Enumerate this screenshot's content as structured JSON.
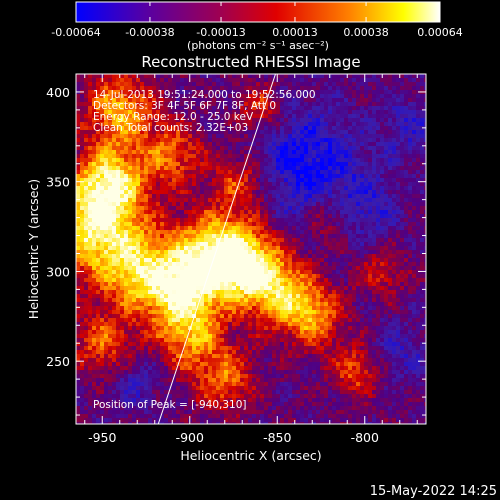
{
  "chart_data": {
    "type": "heatmap",
    "title": "Reconstructed RHESSI Image",
    "xlabel": "Heliocentric X (arcsec)",
    "ylabel": "Heliocentric Y (arcsec)",
    "xlim": [
      -965,
      -765
    ],
    "ylim": [
      215,
      410
    ],
    "x_ticks": [
      -950,
      -900,
      -850,
      -800
    ],
    "y_ticks": [
      250,
      300,
      350,
      400
    ],
    "x_tick_labels": [
      "-950",
      "-900",
      "-850",
      "-800"
    ],
    "y_tick_labels": [
      "250",
      "300",
      "350",
      "400"
    ],
    "colorbar": {
      "range": [
        -0.00064,
        0.00064
      ],
      "ticks": [
        -0.00064,
        -0.00038,
        -0.00013,
        0.00013,
        0.00038,
        0.00064
      ],
      "tick_labels": [
        "-0.00064",
        "-0.00038",
        "-0.00013",
        "0.00013",
        "0.00038",
        "0.00064"
      ],
      "units": "(photons cm⁻² s⁻¹ asec⁻²)"
    },
    "annotations": [
      "14-Jul-2013 19:51:24.000 to 19:52:56.000",
      "Detectors: 3F 4F 5F 6F 7F 8F, Att 0",
      "Energy Range: 12.0 - 25.0 keV",
      "Clean    Total counts: 2.32E+03"
    ],
    "peak_label": "Position of Peak = [-940,310]",
    "peak": [
      -940,
      310
    ],
    "limb_line": [
      [
        -918,
        215
      ],
      [
        -851,
        410
      ]
    ],
    "grid": false,
    "colormap": [
      "#0000ff",
      "#4b0082",
      "#800080",
      "#cc0000",
      "#ff8c00",
      "#ffff00",
      "#ffffff"
    ],
    "hot_regions": [
      {
        "x": -955,
        "y": 325,
        "s": 18,
        "a": 1.0
      },
      {
        "x": -945,
        "y": 350,
        "s": 14,
        "a": 0.9
      },
      {
        "x": -930,
        "y": 300,
        "s": 16,
        "a": 0.8
      },
      {
        "x": -905,
        "y": 290,
        "s": 14,
        "a": 0.8
      },
      {
        "x": -888,
        "y": 310,
        "s": 16,
        "a": 0.9
      },
      {
        "x": -870,
        "y": 305,
        "s": 14,
        "a": 0.95
      },
      {
        "x": -850,
        "y": 290,
        "s": 14,
        "a": 0.8
      },
      {
        "x": -830,
        "y": 275,
        "s": 12,
        "a": 0.7
      },
      {
        "x": -900,
        "y": 265,
        "s": 14,
        "a": 0.7
      },
      {
        "x": -880,
        "y": 240,
        "s": 12,
        "a": 0.6
      },
      {
        "x": -940,
        "y": 390,
        "s": 14,
        "a": 0.8
      },
      {
        "x": -910,
        "y": 365,
        "s": 12,
        "a": 0.6
      },
      {
        "x": -870,
        "y": 350,
        "s": 12,
        "a": 0.55
      },
      {
        "x": -860,
        "y": 390,
        "s": 10,
        "a": 0.5
      },
      {
        "x": -805,
        "y": 245,
        "s": 10,
        "a": 0.55
      },
      {
        "x": -790,
        "y": 300,
        "s": 10,
        "a": 0.4
      },
      {
        "x": -820,
        "y": 330,
        "s": 10,
        "a": 0.4
      },
      {
        "x": -950,
        "y": 260,
        "s": 12,
        "a": 0.55
      }
    ],
    "cold_regions": [
      {
        "x": -835,
        "y": 360,
        "s": 22,
        "a": 1.0
      },
      {
        "x": -800,
        "y": 335,
        "s": 14,
        "a": 0.6
      },
      {
        "x": -780,
        "y": 255,
        "s": 12,
        "a": 0.5
      },
      {
        "x": -930,
        "y": 238,
        "s": 10,
        "a": 0.5
      },
      {
        "x": -775,
        "y": 380,
        "s": 12,
        "a": 0.5
      }
    ]
  },
  "footer": {
    "timestamp": "15-May-2022 14:25"
  }
}
